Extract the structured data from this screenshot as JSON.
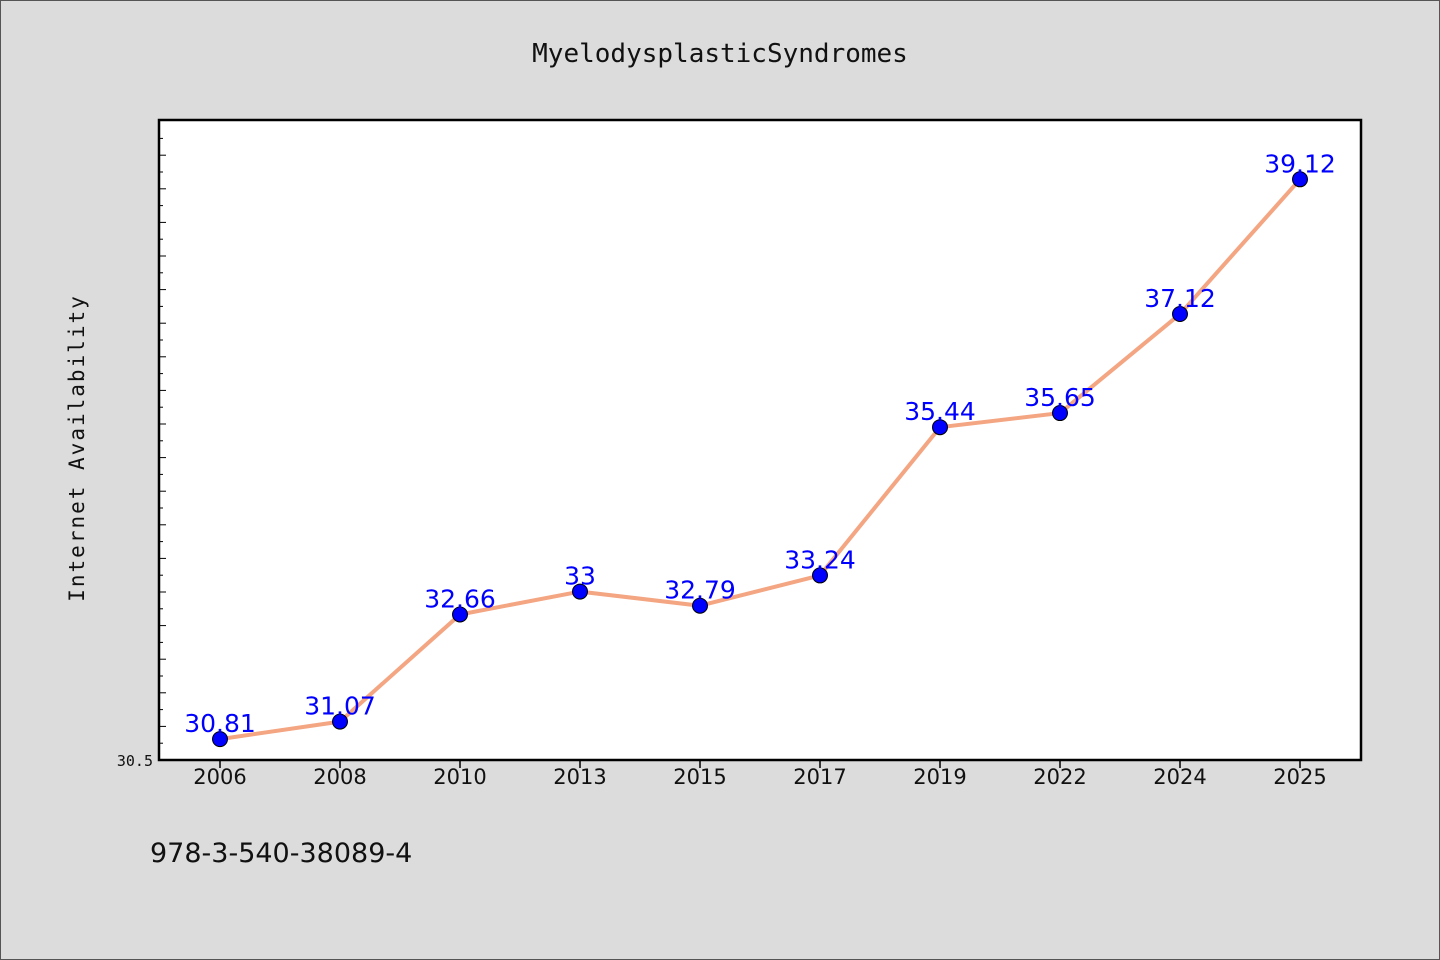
{
  "chart_data": {
    "type": "line",
    "title": "MyelodysplasticSyndromes",
    "xlabel": "",
    "ylabel": "Internet Availability",
    "categories": [
      "2006",
      "2008",
      "2010",
      "2013",
      "2015",
      "2017",
      "2019",
      "2022",
      "2024",
      "2025"
    ],
    "series": [
      {
        "values": [
          30.81,
          31.07,
          32.66,
          33,
          32.79,
          33.24,
          35.44,
          35.65,
          37.12,
          39.12
        ],
        "labels": [
          "30.81",
          "31.07",
          "32.66",
          "33",
          "32.79",
          "33.24",
          "35.44",
          "35.65",
          "37.12",
          "39.12"
        ],
        "line_color": "#f4a582",
        "marker_color": "#0000ff"
      }
    ],
    "yticks": [
      "30.5"
    ],
    "ylim": [
      30.5,
      40.0
    ],
    "grid": false,
    "legend": "none"
  },
  "footer": {
    "code": "978-3-540-38089-4"
  },
  "colors": {
    "background": "#dcdcdc",
    "plot_background": "#ffffff",
    "axis": "#000000"
  }
}
